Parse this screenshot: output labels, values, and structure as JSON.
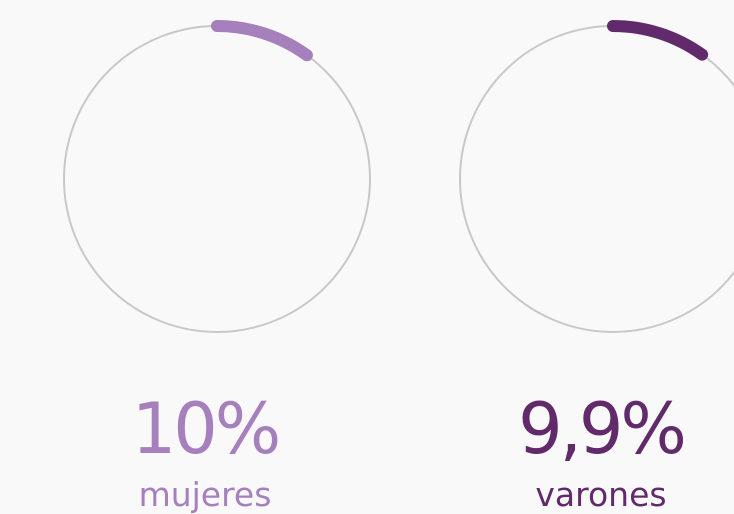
{
  "chart_data": {
    "type": "progress-ring",
    "categories": [
      "mujeres",
      "varones"
    ],
    "values": [
      10,
      9.9
    ],
    "value_labels": [
      "10%",
      "9,9%"
    ],
    "colors": [
      "#a67fbd",
      "#612a6b"
    ],
    "ylim": [
      0,
      100
    ]
  }
}
